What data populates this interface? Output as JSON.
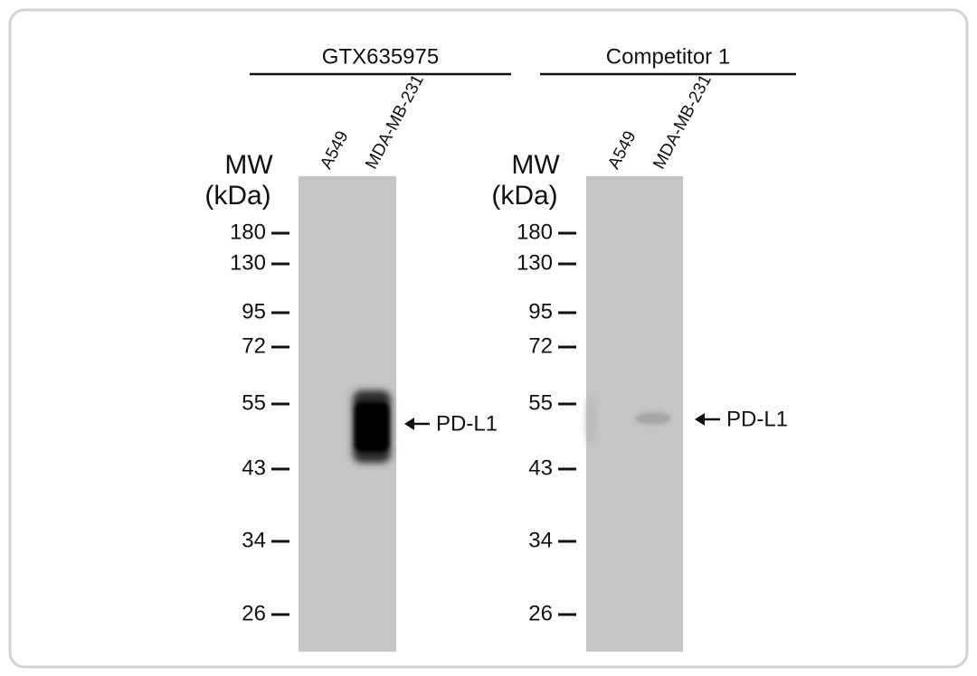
{
  "panels": [
    {
      "title": "GTX635975",
      "lanes": [
        "A549",
        "MDA-MB-231"
      ],
      "mw_label": "MW",
      "unit_label": "(kDa)",
      "markers": [
        180,
        130,
        95,
        72,
        55,
        43,
        34,
        26
      ],
      "band_label": "PD-L1"
    },
    {
      "title": "Competitor 1",
      "lanes": [
        "A549",
        "MDA-MB-231"
      ],
      "mw_label": "MW",
      "unit_label": "(kDa)",
      "markers": [
        180,
        130,
        95,
        72,
        55,
        43,
        34,
        26
      ],
      "band_label": "PD-L1"
    }
  ]
}
